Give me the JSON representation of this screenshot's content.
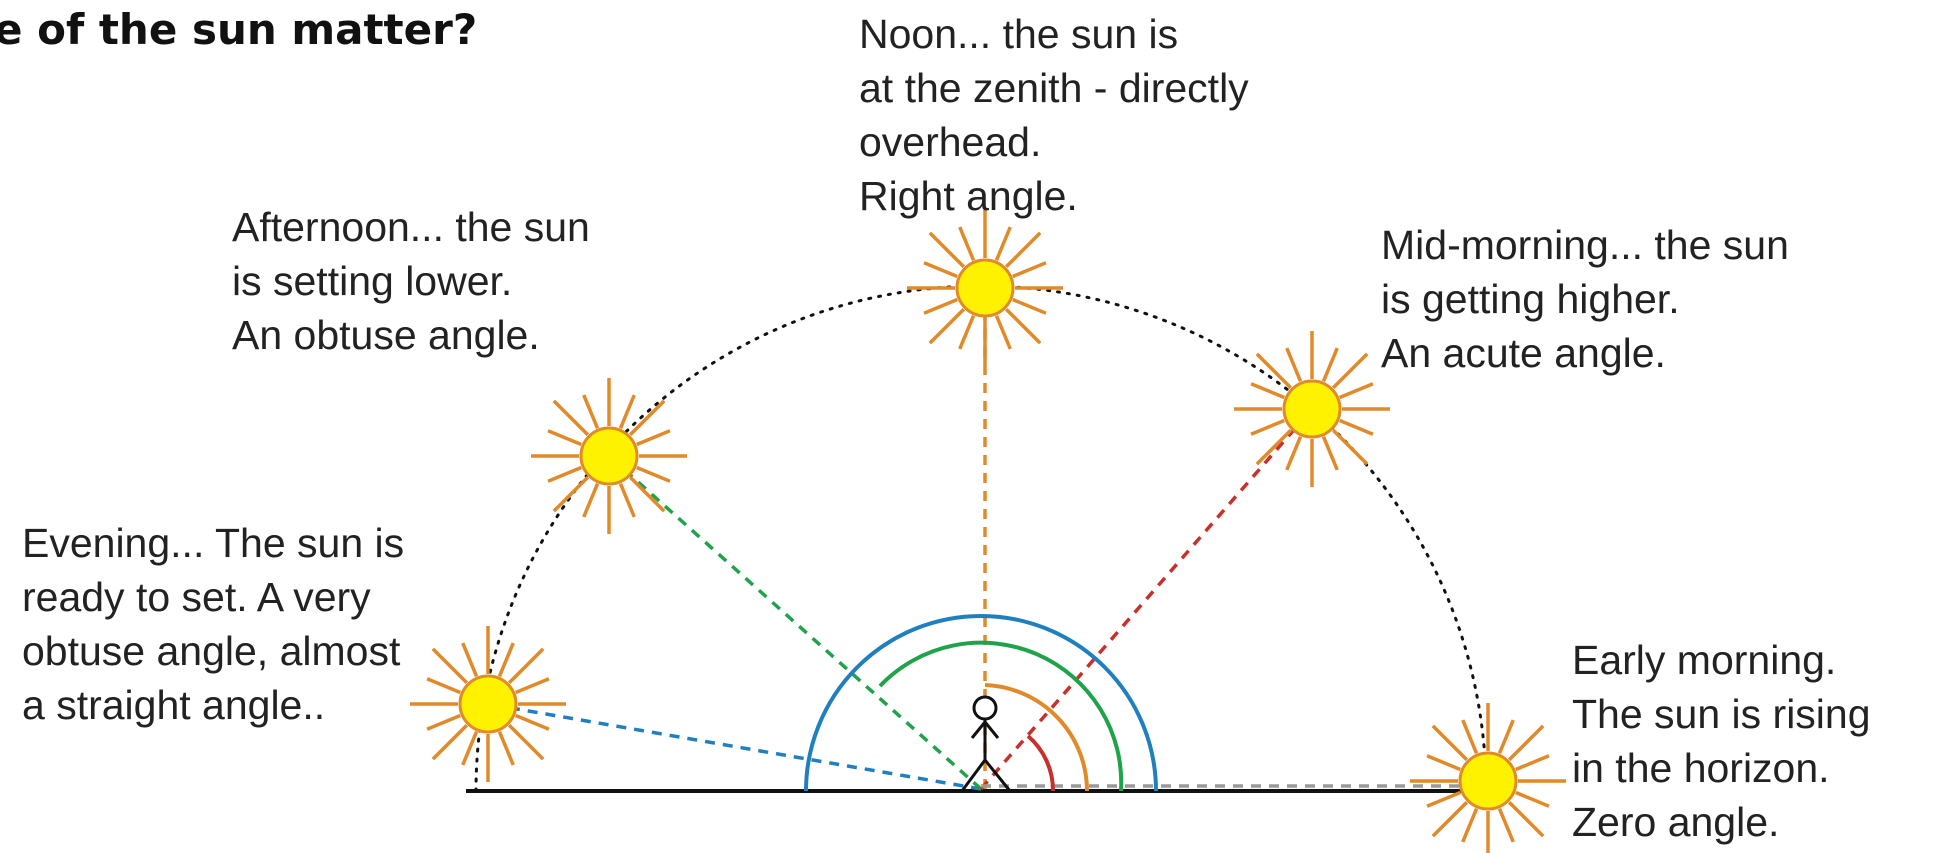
{
  "title": "e of the sun matter?",
  "labels": {
    "noon": [
      "Noon... the sun is",
      "at the zenith - directly",
      "overhead.",
      "Right angle."
    ],
    "afternoon": [
      "Afternoon... the sun",
      "is setting lower.",
      "An obtuse angle."
    ],
    "mid_morning": [
      "Mid-morning... the sun",
      "is getting higher.",
      "An acute angle."
    ],
    "evening": [
      "Evening... The sun is",
      "ready to set. A very",
      "obtuse angle, almost",
      "a straight angle.."
    ],
    "early_morning": [
      "Early morning.",
      "The sun is rising",
      "in the horizon.",
      "Zero angle."
    ]
  }
}
